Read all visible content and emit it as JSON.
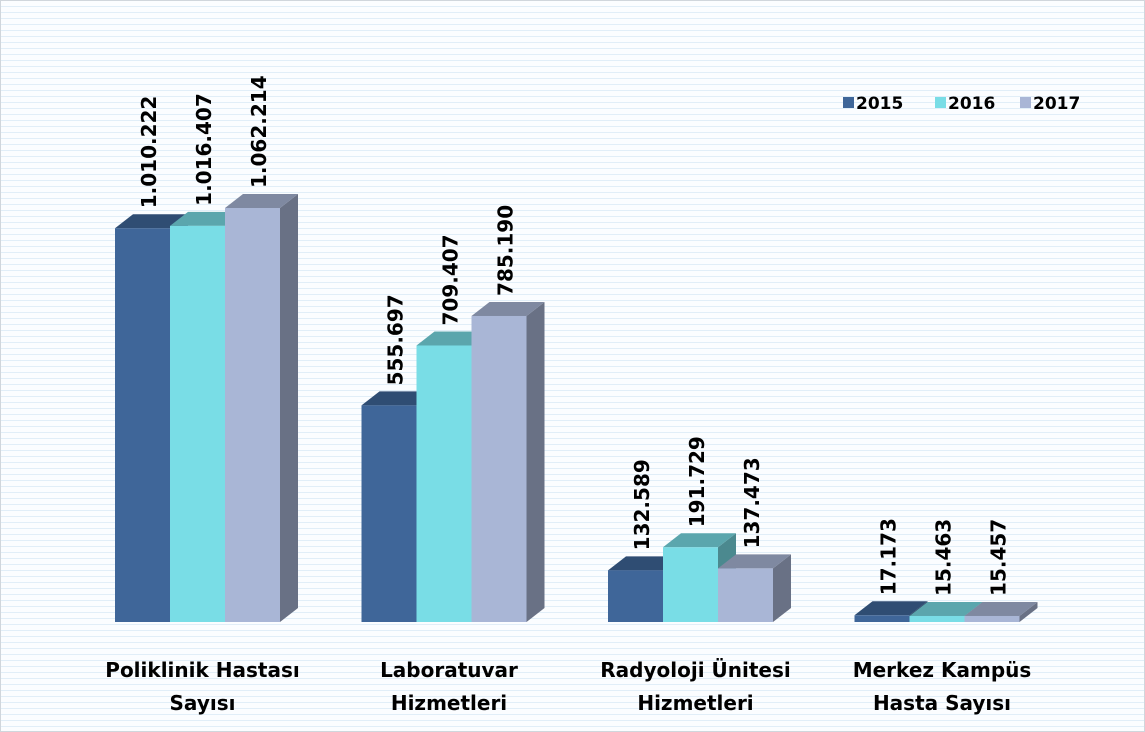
{
  "chart_data": {
    "type": "bar3d",
    "categories": [
      [
        "Poliklinik Hastası",
        "Sayısı"
      ],
      [
        "Laboratuvar",
        "Hizmetleri"
      ],
      [
        "Radyoloji Ünitesi",
        "Hizmetleri"
      ],
      [
        "Merkez Kampüs",
        "Hasta Sayısı"
      ]
    ],
    "series": [
      {
        "name": "2015",
        "color": "#3f6699",
        "values": [
          1010222,
          555697,
          132589,
          17173
        ],
        "value_labels": [
          "1.010.222",
          "555.697",
          "132.589",
          "17.173"
        ]
      },
      {
        "name": "2016",
        "color": "#79dde6",
        "values": [
          1016407,
          709407,
          191729,
          15463
        ],
        "value_labels": [
          "1.016.407",
          "709.407",
          "191.729",
          "15.463"
        ]
      },
      {
        "name": "2017",
        "color": "#a9b6d6",
        "values": [
          1062214,
          785190,
          137473,
          15457
        ],
        "value_labels": [
          "1.062.214",
          "785.190",
          "137.473",
          "15.457"
        ]
      }
    ],
    "legend": "top-right"
  }
}
